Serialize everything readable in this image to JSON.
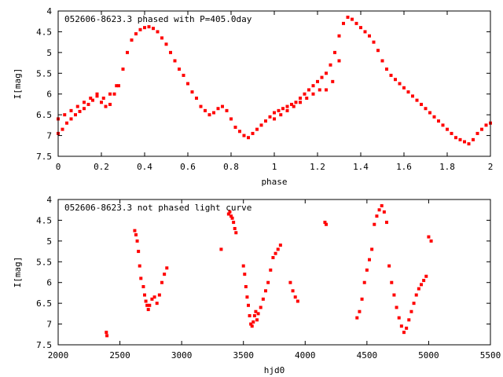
{
  "chart_data": [
    {
      "type": "scatter",
      "title": "052606-8623.3 phased with P=405.0day",
      "xlabel": "phase",
      "ylabel": "I[mag]",
      "xlim": [
        0,
        2
      ],
      "ylim": [
        4,
        7.5
      ],
      "y_inverted": true,
      "grid": false,
      "color": "#ff0000",
      "xticks": [
        0,
        0.2,
        0.4,
        0.6,
        0.8,
        1,
        1.2,
        1.4,
        1.6,
        1.8,
        2
      ],
      "xtick_labels": [
        "0",
        "0.2",
        "0.4",
        "0.6",
        "0.8",
        "1",
        "1.2",
        "1.4",
        "1.6",
        "1.8",
        "2"
      ],
      "yticks": [
        4,
        4.5,
        5,
        5.5,
        6,
        6.5,
        7,
        7.5
      ],
      "ytick_labels": [
        "4",
        "4.5",
        "5",
        "5.5",
        "6",
        "6.5",
        "7",
        "7.5"
      ],
      "series": [
        {
          "x": [
            0.0,
            0.02,
            0.04,
            0.06,
            0.08,
            0.1,
            0.12,
            0.14,
            0.16,
            0.18,
            0.2,
            0.22,
            0.24,
            0.26,
            0.28,
            0.3,
            0.32,
            0.34,
            0.36,
            0.38,
            0.4,
            0.42,
            0.44,
            0.46,
            0.48,
            0.5,
            0.52,
            0.54,
            0.56,
            0.58,
            0.6,
            0.62,
            0.64,
            0.66,
            0.68,
            0.7,
            0.72,
            0.74,
            0.76,
            0.78,
            0.8,
            0.82,
            0.84,
            0.86,
            0.88,
            0.9,
            0.92,
            0.94,
            0.96,
            0.98,
            1.0,
            1.02,
            1.04,
            1.06,
            1.08,
            1.1,
            1.12,
            1.14,
            1.16,
            1.18,
            1.2,
            1.22,
            1.24,
            1.26,
            1.28,
            1.3,
            1.32,
            1.34,
            1.36,
            1.38,
            1.4,
            1.42,
            1.44,
            1.46,
            1.48,
            1.5,
            1.52,
            1.54,
            1.56,
            1.58,
            1.6,
            1.62,
            1.64,
            1.66,
            1.68,
            1.7,
            1.72,
            1.74,
            1.76,
            1.78,
            1.8,
            1.82,
            1.84,
            1.86,
            1.88,
            1.9,
            1.92,
            1.94,
            1.96,
            1.98,
            2.0
          ],
          "y": [
            6.95,
            6.85,
            6.7,
            6.6,
            6.5,
            6.42,
            6.35,
            6.25,
            6.15,
            6.05,
            6.2,
            6.3,
            6.25,
            6.0,
            5.8,
            5.4,
            5.0,
            4.7,
            4.55,
            4.45,
            4.4,
            4.38,
            4.42,
            4.5,
            4.65,
            4.8,
            5.0,
            5.2,
            5.4,
            5.55,
            5.75,
            5.95,
            6.1,
            6.3,
            6.4,
            6.5,
            6.45,
            6.35,
            6.3,
            6.4,
            6.6,
            6.8,
            6.9,
            7.0,
            7.05,
            6.95,
            6.85,
            6.75,
            6.65,
            6.55,
            6.45,
            6.4,
            6.35,
            6.3,
            6.25,
            6.2,
            6.1,
            6.0,
            5.9,
            5.8,
            5.7,
            5.6,
            5.5,
            5.3,
            5.0,
            4.6,
            4.3,
            4.15,
            4.2,
            4.3,
            4.4,
            4.5,
            4.6,
            4.75,
            4.95,
            5.2,
            5.4,
            5.55,
            5.65,
            5.75,
            5.85,
            5.95,
            6.05,
            6.15,
            6.25,
            6.35,
            6.45,
            6.55,
            6.65,
            6.75,
            6.85,
            6.95,
            7.05,
            7.1,
            7.15,
            7.2,
            7.1,
            6.95,
            6.85,
            6.75,
            6.7
          ]
        },
        {
          "x": [
            0.0,
            0.03,
            0.06,
            0.09,
            0.12,
            0.15,
            0.18,
            0.21,
            0.24,
            0.27,
            1.0,
            1.03,
            1.06,
            1.09,
            1.12,
            1.15,
            1.18,
            1.21,
            1.24,
            1.27,
            1.3
          ],
          "y": [
            6.6,
            6.5,
            6.4,
            6.3,
            6.2,
            6.1,
            6.0,
            6.1,
            6.0,
            5.8,
            6.6,
            6.5,
            6.4,
            6.3,
            6.2,
            6.1,
            6.0,
            5.9,
            5.9,
            5.7,
            5.2
          ]
        }
      ]
    },
    {
      "type": "scatter",
      "title": "052606-8623.3 not phased light curve",
      "xlabel": "hjd0",
      "ylabel": "I[mag]",
      "xlim": [
        2000,
        5500
      ],
      "ylim": [
        4,
        7.5
      ],
      "y_inverted": true,
      "grid": false,
      "color": "#ff0000",
      "xticks": [
        2000,
        2500,
        3000,
        3500,
        4000,
        4500,
        5000,
        5500
      ],
      "xtick_labels": [
        "2000",
        "2500",
        "3000",
        "3500",
        "4000",
        "4500",
        "5000",
        "5500"
      ],
      "yticks": [
        4,
        4.5,
        5,
        5.5,
        6,
        6.5,
        7,
        7.5
      ],
      "ytick_labels": [
        "4",
        "4.5",
        "5",
        "5.5",
        "6",
        "6.5",
        "7",
        "7.5"
      ],
      "series": [
        {
          "x": [
            2390,
            2395,
            2620,
            2630,
            2640,
            2650,
            2660,
            2670,
            2690,
            2700,
            2710,
            2720,
            2730,
            2740,
            2760,
            2780,
            2800,
            2820,
            2840,
            2860,
            2880,
            3320,
            3380,
            3390,
            3400,
            3410,
            3420,
            3430,
            3440,
            3500,
            3510,
            3520,
            3530,
            3540,
            3550,
            3560,
            3570,
            3580,
            3590,
            3600,
            3610,
            3620,
            3640,
            3660,
            3680,
            3700,
            3720,
            3740,
            3760,
            3780,
            3800,
            3880,
            3900,
            3920,
            3940,
            4160,
            4170,
            4420,
            4440,
            4460,
            4480,
            4500,
            4520,
            4540,
            4560,
            4580,
            4600,
            4620,
            4640,
            4660,
            4680,
            4700,
            4720,
            4740,
            4760,
            4780,
            4800,
            4820,
            4840,
            4860,
            4880,
            4900,
            4920,
            4940,
            4960,
            4980,
            5000,
            5020
          ],
          "y": [
            7.2,
            7.28,
            4.75,
            4.85,
            5.0,
            5.25,
            5.6,
            5.9,
            6.1,
            6.3,
            6.45,
            6.55,
            6.65,
            6.55,
            6.4,
            6.35,
            6.5,
            6.3,
            6.0,
            5.8,
            5.65,
            5.2,
            4.35,
            4.3,
            4.4,
            4.45,
            4.55,
            4.7,
            4.8,
            5.6,
            5.8,
            6.1,
            6.35,
            6.55,
            6.8,
            7.0,
            7.05,
            6.95,
            6.8,
            6.7,
            6.9,
            6.75,
            6.6,
            6.4,
            6.2,
            6.0,
            5.7,
            5.4,
            5.3,
            5.2,
            5.1,
            6.0,
            6.2,
            6.35,
            6.45,
            4.55,
            4.6,
            6.85,
            6.7,
            6.4,
            6.0,
            5.7,
            5.45,
            5.2,
            4.6,
            4.4,
            4.25,
            4.15,
            4.3,
            4.55,
            5.6,
            6.0,
            6.3,
            6.6,
            6.85,
            7.05,
            7.2,
            7.1,
            6.9,
            6.7,
            6.5,
            6.3,
            6.15,
            6.05,
            5.95,
            5.85,
            4.9,
            5.0
          ]
        }
      ]
    }
  ]
}
